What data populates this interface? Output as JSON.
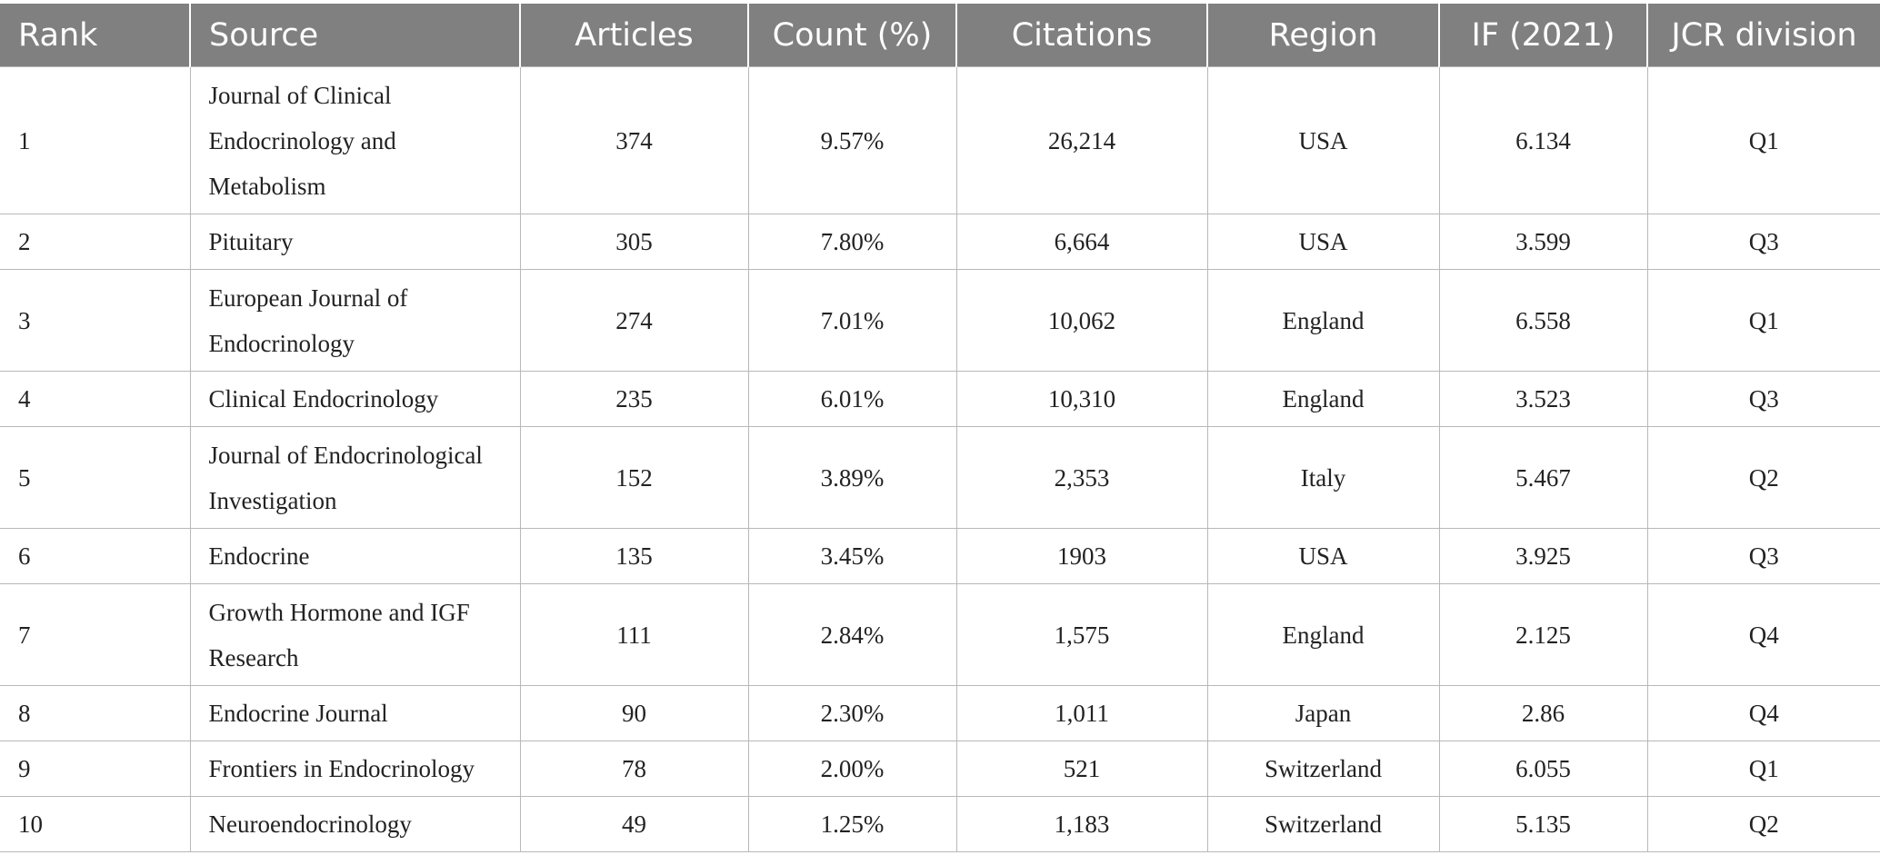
{
  "table": {
    "headers": [
      "Rank",
      "Source",
      "Articles",
      "Count (%)",
      "Citations",
      "Region",
      "IF (2021)",
      "JCR division"
    ],
    "rows": [
      [
        "1",
        "Journal of Clinical Endocrinology and Metabolism",
        "374",
        "9.57%",
        "26,214",
        "USA",
        "6.134",
        "Q1"
      ],
      [
        "2",
        "Pituitary",
        "305",
        "7.80%",
        "6,664",
        "USA",
        "3.599",
        "Q3"
      ],
      [
        "3",
        "European Journal of Endocrinology",
        "274",
        "7.01%",
        "10,062",
        "England",
        "6.558",
        "Q1"
      ],
      [
        "4",
        "Clinical Endocrinology",
        "235",
        "6.01%",
        "10,310",
        "England",
        "3.523",
        "Q3"
      ],
      [
        "5",
        "Journal of Endocrinological Investigation",
        "152",
        "3.89%",
        "2,353",
        "Italy",
        "5.467",
        "Q2"
      ],
      [
        "6",
        "Endocrine",
        "135",
        "3.45%",
        "1903",
        "USA",
        "3.925",
        "Q3"
      ],
      [
        "7",
        "Growth Hormone and IGF Research",
        "111",
        "2.84%",
        "1,575",
        "England",
        "2.125",
        "Q4"
      ],
      [
        "8",
        "Endocrine Journal",
        "90",
        "2.30%",
        "1,011",
        "Japan",
        "2.86",
        "Q4"
      ],
      [
        "9",
        "Frontiers in Endocrinology",
        "78",
        "2.00%",
        "521",
        "Switzerland",
        "6.055",
        "Q1"
      ],
      [
        "10",
        "Neuroendocrinology",
        "49",
        "1.25%",
        "1,183",
        "Switzerland",
        "5.135",
        "Q2"
      ]
    ]
  }
}
